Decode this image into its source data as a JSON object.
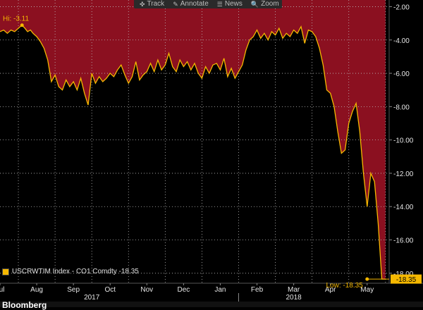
{
  "toolbar": {
    "items": [
      {
        "label": "Track",
        "icon": "crosshair-icon",
        "glyph": "✜"
      },
      {
        "label": "Annotate",
        "icon": "pencil-icon",
        "glyph": "✎"
      },
      {
        "label": "News",
        "icon": "news-icon",
        "glyph": "☰"
      },
      {
        "label": "Zoom",
        "icon": "magnifier-icon",
        "glyph": "🔍"
      }
    ]
  },
  "legend": {
    "text": "USCRWTIM Index - CO1 Comdty -18.35",
    "swatch_color": "#f5b800"
  },
  "bottom_text": "Bloomberg",
  "colors": {
    "background": "#000000",
    "fill": "#8b1020",
    "line": "#f5b800",
    "grid": "#bdbdbd",
    "axis_text": "#e6e6e6"
  },
  "chart_data": {
    "type": "area",
    "title": "",
    "xlabel": "",
    "ylabel": "",
    "ylim": [
      -18.6,
      -1.6
    ],
    "y_ticks": [
      -2,
      -4,
      -6,
      -8,
      -10,
      -12,
      -14,
      -16,
      -18
    ],
    "y_tick_labels": [
      "-2.00",
      "-4.00",
      "-6.00",
      "-8.00",
      "-10.00",
      "-12.00",
      "-14.00",
      "-16.00",
      "-18.00"
    ],
    "x_tick_labels": [
      "Jul",
      "Aug",
      "Sep",
      "Oct",
      "Nov",
      "Dec",
      "Jan",
      "Feb",
      "Mar",
      "Apr",
      "May"
    ],
    "x_year_labels": [
      {
        "label": "2017",
        "at": 2.5
      },
      {
        "label": "2018",
        "at": 8.0
      }
    ],
    "grid": true,
    "legend_position": "bottom-left",
    "series": [
      {
        "name": "USCRWTIM Index - CO1 Comdty",
        "x": [
          0.0,
          0.1,
          0.2,
          0.3,
          0.4,
          0.5,
          0.6,
          0.68,
          0.75,
          0.83,
          0.9,
          1.0,
          1.1,
          1.2,
          1.3,
          1.4,
          1.5,
          1.6,
          1.7,
          1.8,
          1.9,
          2.0,
          2.1,
          2.2,
          2.3,
          2.4,
          2.5,
          2.6,
          2.7,
          2.8,
          2.9,
          3.0,
          3.1,
          3.2,
          3.3,
          3.4,
          3.5,
          3.6,
          3.7,
          3.8,
          3.9,
          4.0,
          4.1,
          4.2,
          4.3,
          4.4,
          4.5,
          4.6,
          4.7,
          4.8,
          4.9,
          5.0,
          5.1,
          5.2,
          5.3,
          5.4,
          5.5,
          5.6,
          5.7,
          5.8,
          5.9,
          6.0,
          6.1,
          6.2,
          6.3,
          6.4,
          6.5,
          6.6,
          6.7,
          6.8,
          6.9,
          7.0,
          7.1,
          7.2,
          7.3,
          7.4,
          7.5,
          7.6,
          7.7,
          7.8,
          7.9,
          8.0,
          8.1,
          8.2,
          8.3,
          8.4,
          8.5,
          8.6,
          8.7,
          8.8,
          8.9,
          9.0,
          9.1,
          9.2,
          9.3,
          9.4,
          9.5,
          9.6,
          9.7,
          9.8,
          9.9,
          10.0,
          10.1,
          10.2,
          10.3,
          10.4,
          10.5
        ],
        "values": [
          -3.5,
          -3.4,
          -3.6,
          -3.4,
          -3.5,
          -3.3,
          -3.11,
          -3.3,
          -3.5,
          -3.4,
          -3.6,
          -3.8,
          -4.1,
          -4.5,
          -5.2,
          -6.5,
          -6.1,
          -6.8,
          -7.0,
          -6.4,
          -6.8,
          -6.5,
          -7.0,
          -6.3,
          -7.2,
          -7.9,
          -6.0,
          -6.6,
          -6.2,
          -6.5,
          -6.3,
          -6.0,
          -6.2,
          -5.8,
          -5.5,
          -6.1,
          -6.6,
          -6.2,
          -5.3,
          -6.4,
          -6.1,
          -5.9,
          -5.4,
          -5.9,
          -5.2,
          -5.8,
          -5.5,
          -4.8,
          -5.6,
          -5.9,
          -5.2,
          -5.6,
          -5.3,
          -5.8,
          -5.4,
          -6.0,
          -6.3,
          -5.6,
          -6.0,
          -5.5,
          -5.4,
          -5.8,
          -5.1,
          -6.2,
          -5.7,
          -6.3,
          -5.9,
          -5.5,
          -4.6,
          -4.0,
          -3.8,
          -3.4,
          -3.9,
          -3.6,
          -4.0,
          -3.5,
          -3.7,
          -3.3,
          -3.9,
          -3.6,
          -3.8,
          -3.4,
          -3.6,
          -3.2,
          -4.2,
          -3.4,
          -3.5,
          -3.8,
          -4.5,
          -5.5,
          -7.0,
          -7.2,
          -8.0,
          -9.5,
          -10.8,
          -10.6,
          -9.0,
          -8.3,
          -7.8,
          -9.5,
          -12.0,
          -14.0,
          -12.0,
          -12.5,
          -15.0,
          -18.35,
          -18.35
        ]
      }
    ],
    "annotations": [
      {
        "label": "Hi: -3.11",
        "x": 0.6,
        "y": -3.11
      },
      {
        "label": "Low: -18.35",
        "x": 10.0,
        "y": -18.35
      }
    ],
    "last_value_label": "-18.35"
  }
}
